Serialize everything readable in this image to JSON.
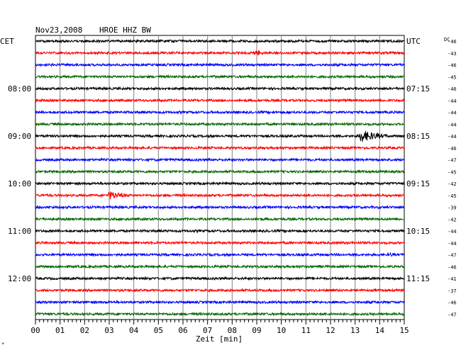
{
  "header": {
    "date": "Nov23,2008",
    "station": "HROE HHZ BW",
    "left_zone": "CET",
    "right_zone": "UTC",
    "dc_label": "DC",
    "footer_mark": "*"
  },
  "chart_data": {
    "type": "line",
    "xlabel": "Zeit [min]",
    "xlim": [
      0,
      15
    ],
    "x_ticks": [
      "00",
      "01",
      "02",
      "03",
      "04",
      "05",
      "06",
      "07",
      "08",
      "09",
      "10",
      "11",
      "12",
      "13",
      "14",
      "15"
    ],
    "trace_colors": [
      "#000000",
      "#ff0000",
      "#0000ff",
      "#006600"
    ],
    "grid": true,
    "left_time_labels": [
      {
        "row": 4,
        "label": "08:00"
      },
      {
        "row": 8,
        "label": "09:00"
      },
      {
        "row": 12,
        "label": "10:00"
      },
      {
        "row": 16,
        "label": "11:00"
      },
      {
        "row": 20,
        "label": "12:00"
      }
    ],
    "right_time_labels": [
      {
        "row": 0,
        "label": "UTC"
      },
      {
        "row": 4,
        "label": "07:15"
      },
      {
        "row": 8,
        "label": "08:15"
      },
      {
        "row": 12,
        "label": "09:15"
      },
      {
        "row": 16,
        "label": "10:15"
      },
      {
        "row": 20,
        "label": "11:15"
      }
    ],
    "dc_offsets": [
      "-46",
      "-43",
      "-46",
      "-45",
      "-46",
      "-44",
      "-44",
      "-44",
      "-44",
      "-46",
      "-47",
      "-45",
      "-42",
      "-45",
      "-39",
      "-42",
      "-44",
      "-44",
      "-47",
      "-46",
      "-41",
      "-37",
      "-46",
      "-47"
    ],
    "events": [
      {
        "row": 1,
        "minute": 9.0,
        "amplitude": 4,
        "duration": 0.5
      },
      {
        "row": 8,
        "minute": 13.2,
        "amplitude": 9,
        "duration": 1.6
      },
      {
        "row": 13,
        "minute": 3.0,
        "amplitude": 6,
        "duration": 1.4
      },
      {
        "row": 18,
        "minute": 14.4,
        "amplitude": 3,
        "duration": 0.6
      }
    ]
  }
}
